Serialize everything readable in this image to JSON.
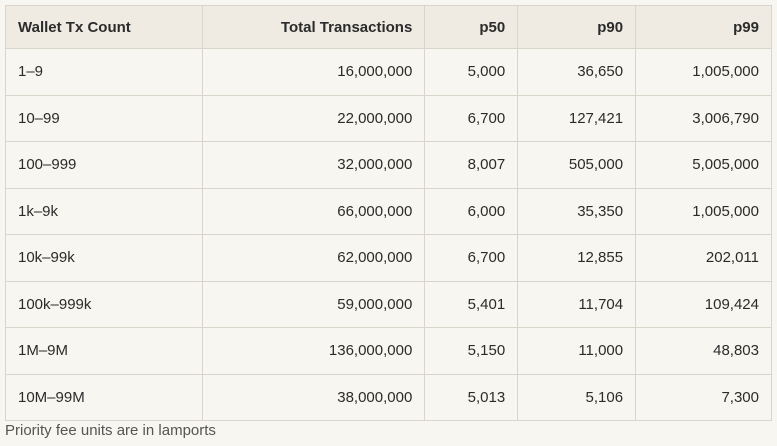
{
  "table": {
    "header": [
      "Wallet Tx Count",
      "Total Transactions",
      "p50",
      "p90",
      "p99"
    ],
    "rows": [
      [
        "1–9",
        "16,000,000",
        "5,000",
        "36,650",
        "1,005,000"
      ],
      [
        "10–99",
        "22,000,000",
        "6,700",
        "127,421",
        "3,006,790"
      ],
      [
        "100–999",
        "32,000,000",
        "8,007",
        "505,000",
        "5,005,000"
      ],
      [
        "1k–9k",
        "66,000,000",
        "6,000",
        "35,350",
        "1,005,000"
      ],
      [
        "10k–99k",
        "62,000,000",
        "6,700",
        "12,855",
        "202,011"
      ],
      [
        "100k–999k",
        "59,000,000",
        "5,401",
        "11,704",
        "109,424"
      ],
      [
        "1M–9M",
        "136,000,000",
        "5,150",
        "11,000",
        "48,803"
      ],
      [
        "10M–99M",
        "38,000,000",
        "5,013",
        "5,106",
        "7,300"
      ]
    ]
  },
  "footnote": "Priority fee units are in lamports"
}
